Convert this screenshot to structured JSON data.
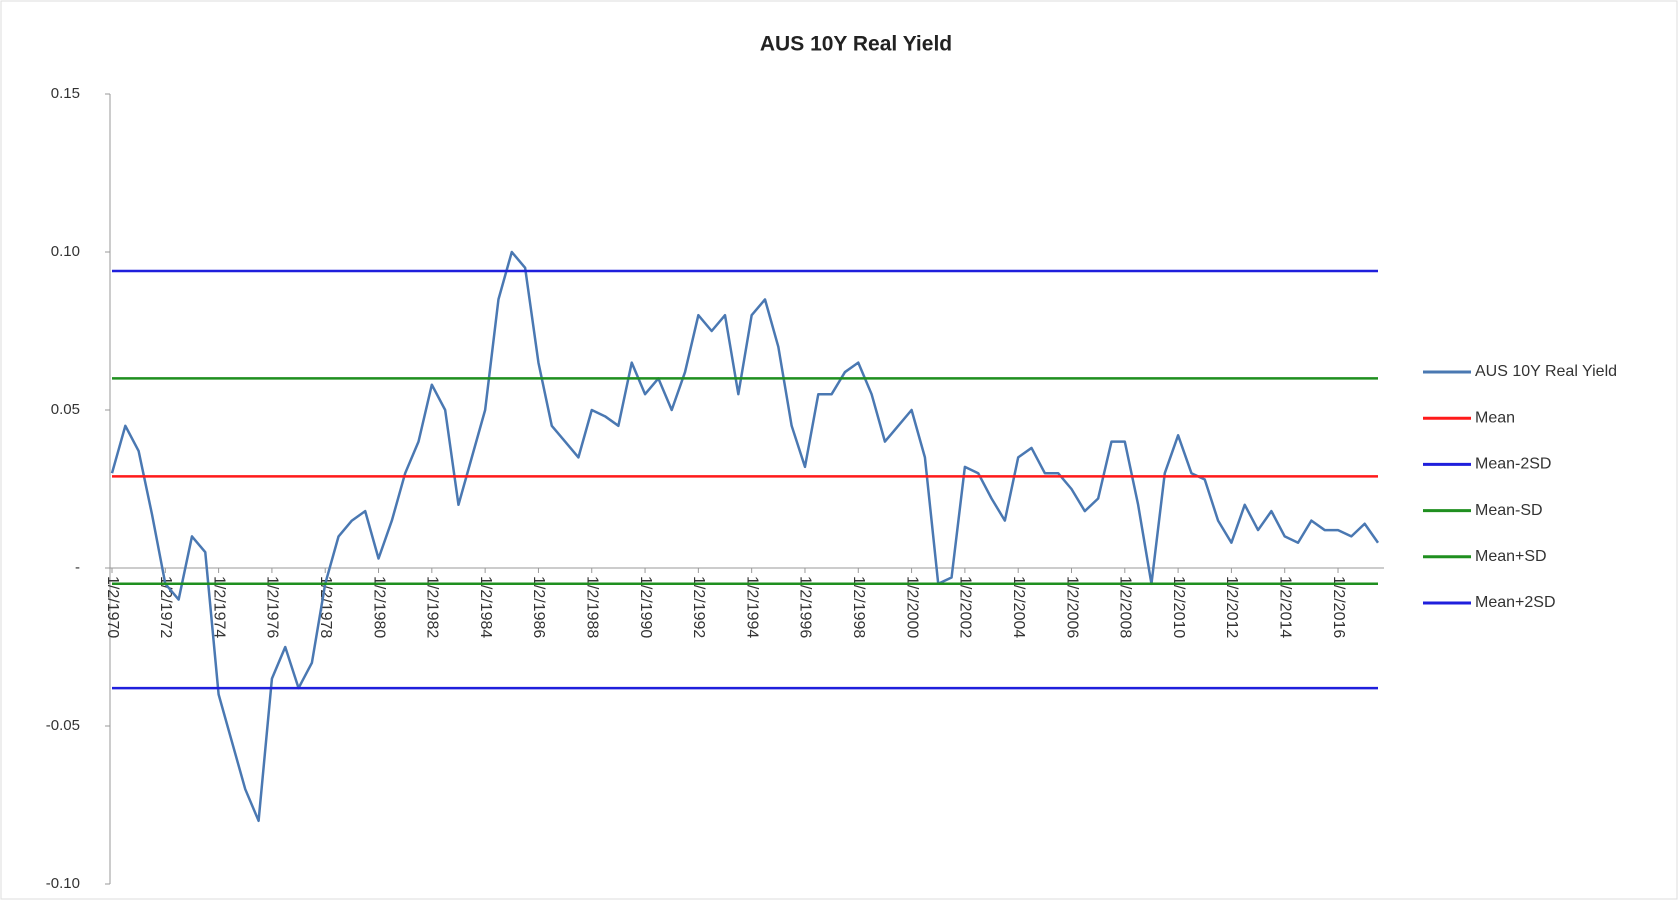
{
  "chart_data": {
    "type": "line",
    "title": "AUS 10Y Real Yield",
    "categories": [
      "1/2/1970",
      null,
      null,
      null,
      "1/2/1972",
      null,
      null,
      null,
      "1/2/1974",
      null,
      null,
      null,
      "1/2/1976",
      null,
      null,
      null,
      "1/2/1978",
      null,
      null,
      null,
      "1/2/1980",
      null,
      null,
      null,
      "1/2/1982",
      null,
      null,
      null,
      "1/2/1984",
      null,
      null,
      null,
      "1/2/1986",
      null,
      null,
      null,
      "1/2/1988",
      null,
      null,
      null,
      "1/2/1990",
      null,
      null,
      null,
      "1/2/1992",
      null,
      null,
      null,
      "1/2/1994",
      null,
      null,
      null,
      "1/2/1996",
      null,
      null,
      null,
      "1/2/1998",
      null,
      null,
      null,
      "1/2/2000",
      null,
      null,
      null,
      "1/2/2002",
      null,
      null,
      null,
      "1/2/2004",
      null,
      null,
      null,
      "1/2/2006",
      null,
      null,
      null,
      "1/2/2008",
      null,
      null,
      null,
      "1/2/2010",
      null,
      null,
      null,
      "1/2/2012",
      null,
      null,
      null,
      "1/2/2014",
      null,
      null,
      null,
      "1/2/2016",
      null,
      null,
      null
    ],
    "series": [
      {
        "name": "AUS 10Y Real Yield",
        "color": "#4a78b2",
        "values": [
          0.03,
          0.045,
          0.037,
          0.017,
          -0.005,
          -0.01,
          0.01,
          0.005,
          -0.04,
          -0.055,
          -0.07,
          -0.08,
          -0.035,
          -0.025,
          -0.038,
          -0.03,
          -0.005,
          0.01,
          0.015,
          0.018,
          0.003,
          0.015,
          0.03,
          0.04,
          0.058,
          0.05,
          0.02,
          0.035,
          0.05,
          0.085,
          0.1,
          0.095,
          0.065,
          0.045,
          0.04,
          0.035,
          0.05,
          0.048,
          0.045,
          0.065,
          0.055,
          0.06,
          0.05,
          0.062,
          0.08,
          0.075,
          0.08,
          0.055,
          0.08,
          0.085,
          0.07,
          0.045,
          0.032,
          0.055,
          0.055,
          0.062,
          0.065,
          0.055,
          0.04,
          0.045,
          0.05,
          0.035,
          -0.005,
          -0.003,
          0.032,
          0.03,
          0.022,
          0.015,
          0.035,
          0.038,
          0.03,
          0.03,
          0.025,
          0.018,
          0.022,
          0.04,
          0.04,
          0.02,
          -0.005,
          0.03,
          0.042,
          0.03,
          0.028,
          0.015,
          0.008,
          0.02,
          0.012,
          0.018,
          0.01,
          0.008,
          0.015,
          0.012,
          0.012,
          0.01,
          0.014,
          0.008
        ]
      },
      {
        "name": "Mean",
        "color": "#ff1a1a",
        "value": 0.029
      },
      {
        "name": "Mean-2SD",
        "color": "#1f1fdc",
        "value": -0.038
      },
      {
        "name": "Mean-SD",
        "color": "#1f8f1f",
        "value": -0.005
      },
      {
        "name": "Mean+SD",
        "color": "#1f8f1f",
        "value": 0.06
      },
      {
        "name": "Mean+2SD",
        "color": "#1f1fdc",
        "value": 0.094
      }
    ],
    "ylim": [
      -0.1,
      0.15
    ],
    "yticks": [
      {
        "value": -0.1,
        "label": "-0.10"
      },
      -0.05,
      {
        "value": 0,
        "label": "-"
      },
      0.05,
      {
        "value": 0.1,
        "label": "0.10"
      },
      0.15
    ],
    "legend": "right"
  }
}
